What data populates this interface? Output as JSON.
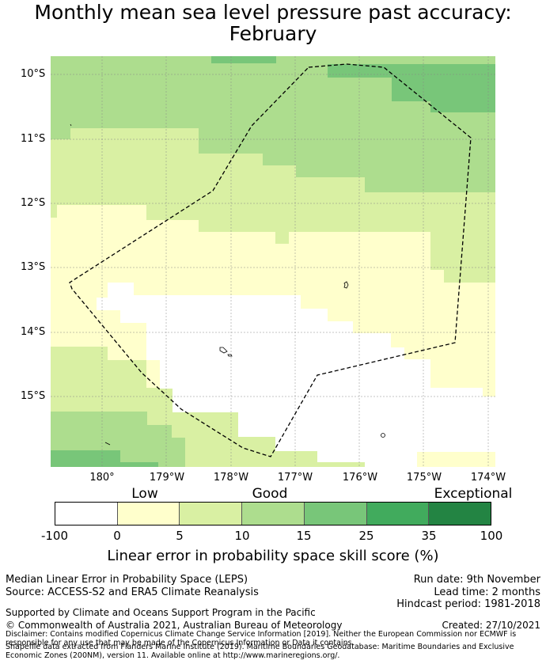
{
  "title_line1": "Monthly mean sea level pressure past accuracy:",
  "title_line2": "February",
  "lat_labels": [
    "10°S",
    "11°S",
    "12°S",
    "13°S",
    "14°S",
    "15°S"
  ],
  "lon_labels": [
    "180°",
    "179°W",
    "178°W",
    "177°W",
    "176°W",
    "175°W",
    "174°W"
  ],
  "colorbar": {
    "categories": [
      "Low",
      "Good",
      "Exceptional"
    ],
    "ticks": [
      "-100",
      "0",
      "5",
      "10",
      "15",
      "25",
      "35",
      "100"
    ],
    "colors": [
      "#ffffff",
      "#ffffcc",
      "#d9f0a3",
      "#addd8e",
      "#78c679",
      "#41ab5d",
      "#238443"
    ],
    "title": "Linear error in probability space skill score (%)"
  },
  "map_colors": {
    "white": "#ffffff",
    "yellow": "#ffffcc",
    "lightgreen": "#d9f0a3",
    "green": "#addd8e",
    "midgreen": "#78c679"
  },
  "footer": {
    "left1": "Median Linear Error in Probability Space (LEPS)",
    "left2": "Source: ACCESS-S2 and ERA5 Climate Reanalysis",
    "right1": "Run date: 9th November",
    "right2": "Lead time: 2 months",
    "right3": "Hindcast period: 1981-2018",
    "support": "Supported by Climate and Oceans Support Program in the Pacific",
    "copyright": "© Commonwealth of Australia 2021, Australian Bureau of Meteorology",
    "created": "Created: 27/10/2021",
    "disclaimer": "Disclaimer: Contains modified Copernicus Climate Change Service Information [2019]. Neither the European Commission nor ECMWF is responsible for any use that may be made of the Copernicus Information or Data it contains.",
    "shapefile": "Shapefile data extracted from Flanders Marine Institute (2019). Maritime Boundaries Geodatabase: Maritime Boundaries and Exclusive Economic Zones (200NM), version 11. Available online at http://www.marineregions.org/."
  }
}
